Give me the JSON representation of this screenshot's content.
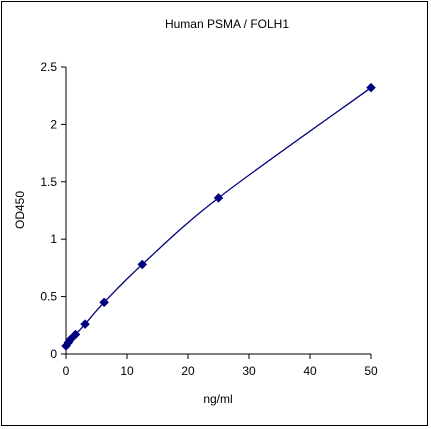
{
  "chart_data": {
    "type": "scatter",
    "title": "Human PSMA / FOLH1",
    "xlabel": "ng/ml",
    "ylabel": "OD450",
    "xlim": [
      0,
      50
    ],
    "ylim": [
      0,
      2.5
    ],
    "xticks": [
      0,
      10,
      20,
      30,
      40,
      50
    ],
    "yticks": [
      0,
      0.5,
      1,
      1.5,
      2,
      2.5
    ],
    "ytick_labels": [
      "0",
      "0.5",
      "1",
      "1.5",
      "2",
      "2.5"
    ],
    "grid": false,
    "legend": "none",
    "colors": {
      "series": "#00007f",
      "axis": "#000000"
    },
    "series": [
      {
        "x": [
          0,
          0.39,
          0.78,
          1.56,
          3.125,
          6.25,
          12.5,
          25,
          50
        ],
        "y": [
          0.07,
          0.1,
          0.13,
          0.17,
          0.26,
          0.45,
          0.78,
          1.36,
          2.32
        ],
        "marker": "diamond",
        "trendline": "smooth"
      }
    ]
  }
}
